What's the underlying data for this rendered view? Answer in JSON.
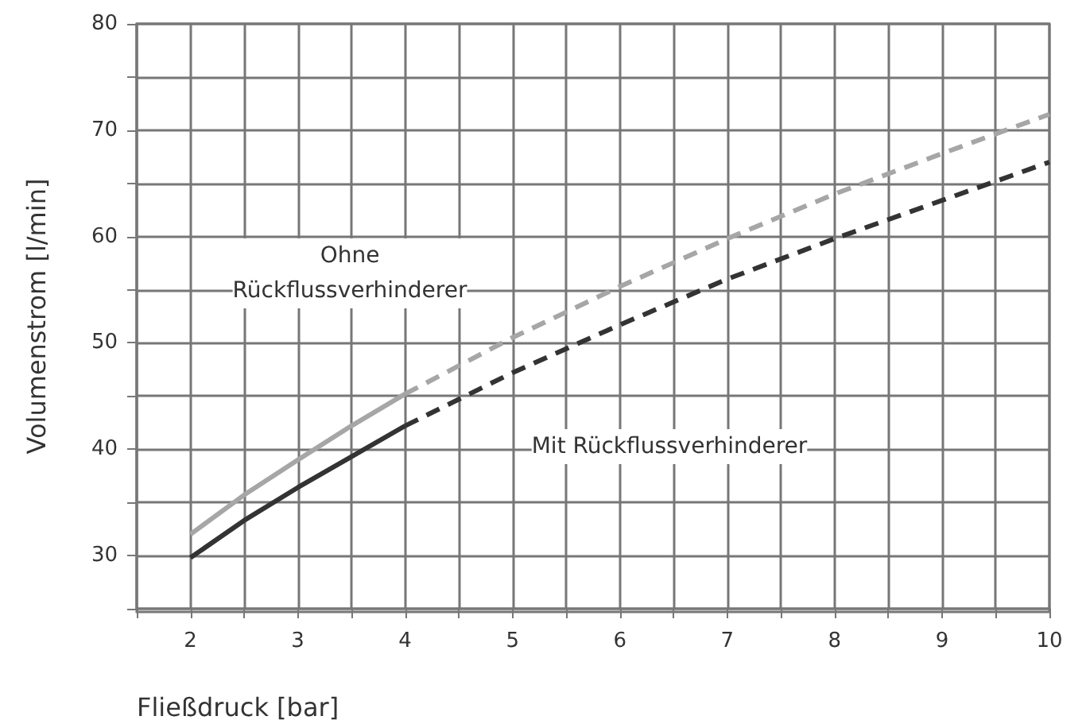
{
  "chart_data": {
    "type": "line",
    "xlabel": "Fließdruck [bar]",
    "ylabel": "Volumenstrom [l/min]",
    "series": [
      {
        "color": "#a6a6a6",
        "line_style": "solid",
        "x": [
          2,
          2.5,
          3,
          3.5,
          4
        ],
        "values": [
          32,
          35.7,
          39,
          42.2,
          45.2
        ]
      },
      {
        "color": "#a6a6a6",
        "line_style": "dashed",
        "x": [
          4,
          5,
          6,
          7,
          8,
          9,
          10
        ],
        "values": [
          45.2,
          50.5,
          55.3,
          59.8,
          64,
          67.8,
          71.5
        ]
      },
      {
        "color": "#333333",
        "line_style": "solid",
        "x": [
          2,
          2.5,
          3,
          3.5,
          4
        ],
        "values": [
          29.8,
          33.3,
          36.4,
          39.3,
          42.2
        ]
      },
      {
        "color": "#333333",
        "line_style": "dashed",
        "x": [
          4,
          5,
          6,
          7,
          8,
          9,
          10
        ],
        "values": [
          42.2,
          47.2,
          51.7,
          56,
          59.8,
          63.4,
          67
        ]
      }
    ],
    "annotations": [
      "Ohne\nRückflussverhinderer",
      "Mit Rückflussverhinderer"
    ],
    "xlim": [
      1.5,
      10
    ],
    "xticks": [
      {
        "value": 1.5,
        "label": null
      },
      2,
      {
        "value": 2.5,
        "label": null
      },
      3,
      {
        "value": 3.5,
        "label": null
      },
      4,
      {
        "value": 4.5,
        "label": null
      },
      5,
      {
        "value": 5.5,
        "label": null
      },
      6,
      {
        "value": 6.5,
        "label": null
      },
      7,
      {
        "value": 7.5,
        "label": null
      },
      8,
      {
        "value": 8.5,
        "label": null
      },
      9,
      {
        "value": 9.5,
        "label": null
      },
      10
    ],
    "ylim": [
      25,
      80
    ],
    "yticks": [
      {
        "value": 25,
        "label": null
      },
      30,
      {
        "value": 35,
        "label": null
      },
      40,
      {
        "value": 45,
        "label": null
      },
      50,
      {
        "value": 55,
        "label": null
      },
      60,
      {
        "value": 65,
        "label": null
      },
      70,
      {
        "value": 75,
        "label": null
      },
      80
    ],
    "grid": true,
    "marker": "none"
  }
}
